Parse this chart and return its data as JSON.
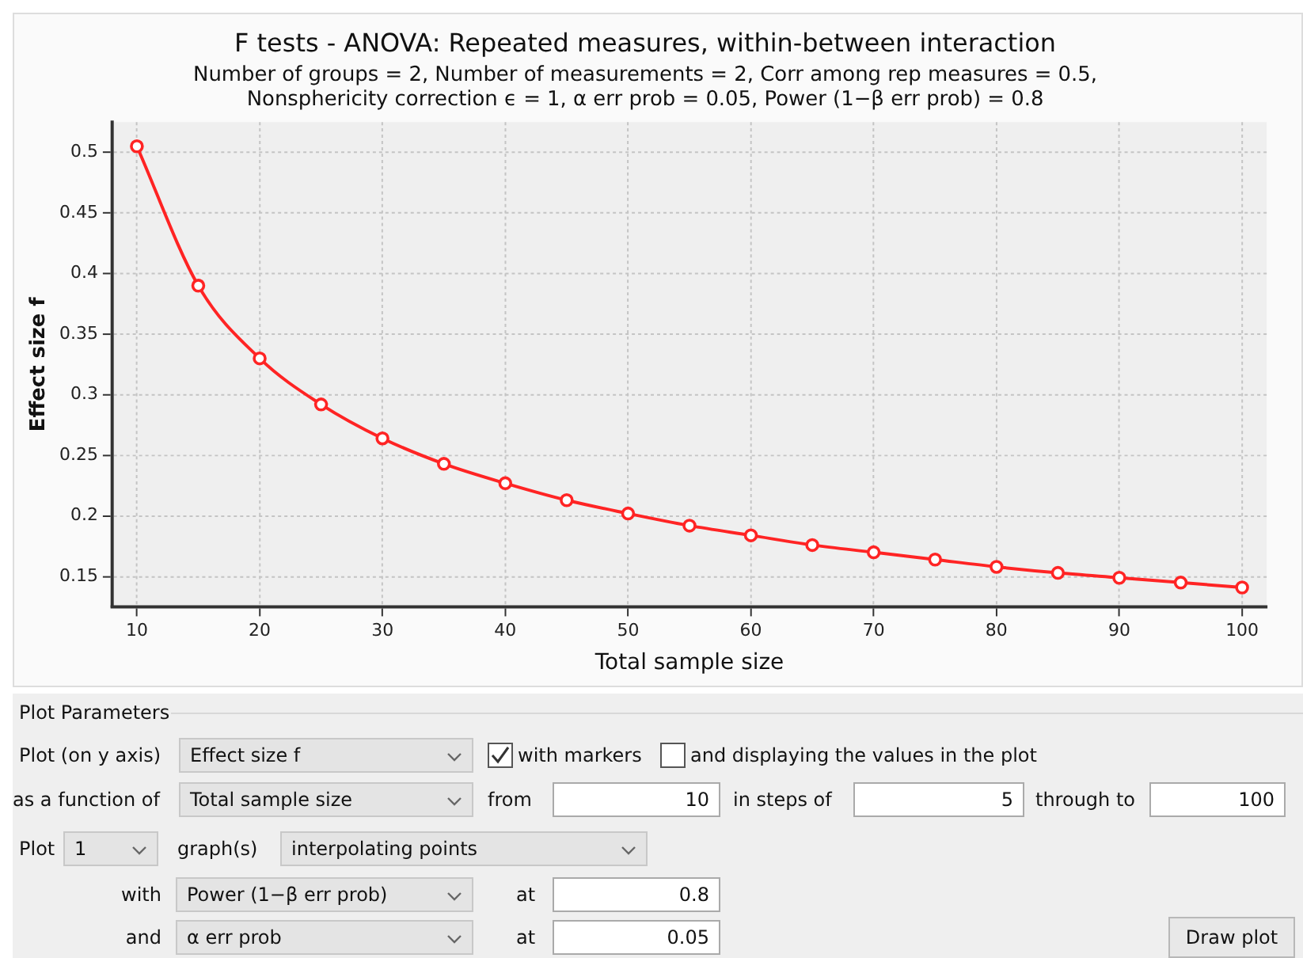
{
  "chart_data": [
    {
      "type": "line",
      "title": "F tests - ANOVA: Repeated measures, within-between interaction",
      "subtitle": "Number of groups = 2, Number of measurements = 2, Corr among rep measures = 0.5, Nonsphericity correction ϵ = 1, α err prob = 0.05, Power (1−β err prob) = 0.8",
      "xlabel": "Total sample size",
      "ylabel": "Effect size f",
      "x": [
        10,
        15,
        20,
        25,
        30,
        35,
        40,
        45,
        50,
        55,
        60,
        65,
        70,
        75,
        80,
        85,
        90,
        95,
        100
      ],
      "values": [
        0.505,
        0.39,
        0.33,
        0.292,
        0.264,
        0.243,
        0.227,
        0.213,
        0.202,
        0.192,
        0.184,
        0.176,
        0.17,
        0.164,
        0.158,
        0.153,
        0.149,
        0.145,
        0.141
      ],
      "color": "#ff2424",
      "marker": "circle",
      "line_style": "solid",
      "grid": true,
      "xlim": [
        8,
        102
      ],
      "xticks": [
        10,
        20,
        30,
        40,
        50,
        60,
        70,
        80,
        90,
        100
      ],
      "ylim": [
        0.125,
        0.525
      ],
      "yticks": [
        0.15,
        0.2,
        0.25,
        0.3,
        0.35,
        0.4,
        0.45,
        0.5
      ]
    },
    {
      "type": "other",
      "title": "Plot Parameters",
      "annotations": [
        "Plot (on y axis)",
        "Effect size f",
        "with markers",
        "and displaying the values in the plot",
        "as a function of",
        "Total sample size",
        "from",
        "10",
        "in steps of",
        "5",
        "through to",
        "100",
        "Plot",
        "1",
        "graph(s)",
        "interpolating points",
        "with",
        "Power (1−β err prob)",
        "at",
        "0.8",
        "and",
        "α err prob",
        "at",
        "0.05",
        "Draw plot"
      ]
    }
  ]
}
